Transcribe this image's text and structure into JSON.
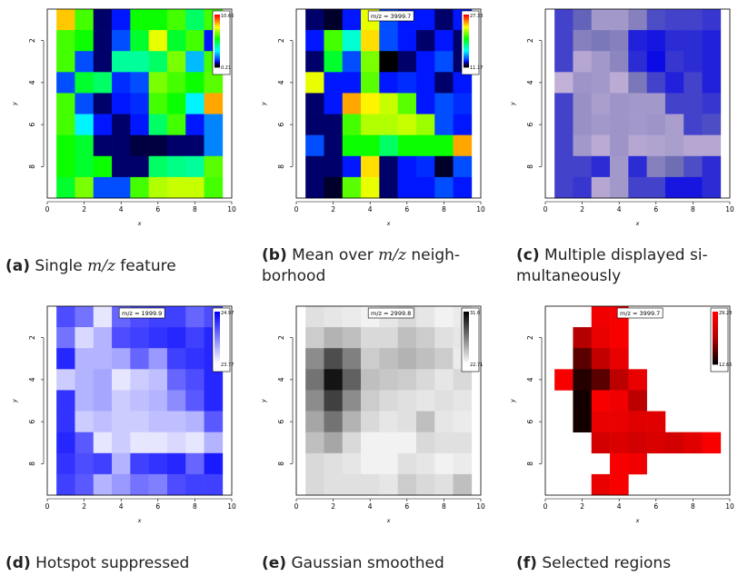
{
  "panels": [
    {
      "caption_label": "(a)",
      "caption_parts": [
        {
          "t": "Single ",
          "math": false
        },
        {
          "t": "m/z",
          "math": true
        },
        {
          "t": " feature",
          "math": false
        }
      ]
    },
    {
      "caption_label": "(b)",
      "caption_parts": [
        {
          "t": "Mean over ",
          "math": false
        },
        {
          "t": "m/z",
          "math": true
        },
        {
          "t": " neigh-\nborhood",
          "math": false
        }
      ]
    },
    {
      "caption_label": "(c)",
      "caption_parts": [
        {
          "t": "Multiple displayed si-\nmultaneously",
          "math": false
        }
      ]
    },
    {
      "caption_label": "(d)",
      "caption_parts": [
        {
          "t": "Hotspot suppressed",
          "math": false
        }
      ]
    },
    {
      "caption_label": "(e)",
      "caption_parts": [
        {
          "t": "Gaussian smoothed",
          "math": false
        }
      ]
    },
    {
      "caption_label": "(f)",
      "caption_parts": [
        {
          "t": "Selected regions",
          "math": false
        }
      ]
    }
  ],
  "chart_data": [
    {
      "type": "heatmap",
      "xlabel": "x",
      "ylabel": "y",
      "xlim": [
        0,
        10
      ],
      "ylim": [
        0.5,
        9.5
      ],
      "y_reversed": true,
      "xticks": [
        0,
        2,
        4,
        6,
        8,
        10
      ],
      "yticks": [
        2,
        4,
        6,
        8
      ],
      "mz_label": "",
      "colormap": "rainbow",
      "colorbar": {
        "max": "10.66",
        "min": "0.21"
      },
      "x": [
        1,
        2,
        3,
        4,
        5,
        6,
        7,
        8,
        9
      ],
      "y": [
        1,
        2,
        3,
        4,
        5,
        6,
        7,
        8,
        9
      ],
      "values": [
        [
          0.82,
          0.6,
          0.05,
          0.1,
          0.55,
          0.55,
          0.6,
          0.45,
          0.6
        ],
        [
          0.6,
          0.55,
          0.05,
          0.15,
          0.5,
          0.75,
          0.5,
          0.6,
          0.1
        ],
        [
          0.6,
          0.15,
          0.05,
          0.4,
          0.4,
          0.45,
          0.65,
          0.25,
          0.6
        ],
        [
          0.15,
          0.5,
          0.45,
          0.12,
          0.15,
          0.65,
          0.6,
          0.55,
          0.62
        ],
        [
          0.6,
          0.15,
          0.05,
          0.1,
          0.12,
          0.6,
          0.55,
          0.3,
          0.85
        ],
        [
          0.6,
          0.3,
          0.1,
          0.05,
          0.1,
          0.45,
          0.6,
          0.1,
          0.2
        ],
        [
          0.55,
          0.5,
          0.05,
          0.05,
          0.03,
          0.03,
          0.05,
          0.05,
          0.2
        ],
        [
          0.55,
          0.5,
          0.55,
          0.05,
          0.05,
          0.45,
          0.42,
          0.4,
          0.62
        ],
        [
          0.5,
          0.65,
          0.15,
          0.15,
          0.6,
          0.7,
          0.72,
          0.72,
          0.6
        ]
      ]
    },
    {
      "type": "heatmap",
      "xlabel": "x",
      "ylabel": "y",
      "xlim": [
        0,
        10
      ],
      "ylim": [
        0.5,
        9.5
      ],
      "y_reversed": true,
      "xticks": [
        0,
        2,
        4,
        6,
        8,
        10
      ],
      "yticks": [
        2,
        4,
        6,
        8
      ],
      "mz_label": "m/z = 3999.7",
      "colormap": "rainbow",
      "colorbar": {
        "max": "27.33",
        "min": "11.17"
      },
      "x": [
        1,
        2,
        3,
        4,
        5,
        6,
        7,
        8,
        9
      ],
      "y": [
        1,
        2,
        3,
        4,
        5,
        6,
        7,
        8,
        9
      ],
      "values": [
        [
          0.05,
          0.02,
          0.1,
          0.75,
          0.15,
          0.1,
          0.1,
          0.05,
          0.1
        ],
        [
          0.1,
          0.6,
          0.35,
          0.8,
          0.15,
          0.1,
          0.05,
          0.1,
          0.05
        ],
        [
          0.05,
          0.5,
          0.15,
          0.65,
          0.0,
          0.05,
          0.1,
          0.15,
          0.05
        ],
        [
          0.75,
          0.1,
          0.1,
          0.62,
          0.1,
          0.12,
          0.1,
          0.05,
          0.1
        ],
        [
          0.05,
          0.1,
          0.85,
          0.78,
          0.72,
          0.62,
          0.1,
          0.15,
          0.12
        ],
        [
          0.05,
          0.05,
          0.6,
          0.7,
          0.7,
          0.72,
          0.68,
          0.15,
          0.1
        ],
        [
          0.15,
          0.05,
          0.55,
          0.55,
          0.45,
          0.55,
          0.55,
          0.55,
          0.85
        ],
        [
          0.05,
          0.05,
          0.1,
          0.8,
          0.05,
          0.1,
          0.12,
          0.02,
          0.15
        ],
        [
          0.05,
          0.02,
          0.62,
          0.75,
          0.05,
          0.1,
          0.1,
          0.15,
          0.1
        ]
      ]
    },
    {
      "type": "heatmap",
      "xlabel": "x",
      "ylabel": "y",
      "xlim": [
        0,
        10
      ],
      "ylim": [
        0.5,
        9.5
      ],
      "y_reversed": true,
      "xticks": [
        0,
        2,
        4,
        6,
        8,
        10
      ],
      "yticks": [
        2,
        4,
        6,
        8
      ],
      "mz_label": "",
      "colormap": "blend",
      "colorbar": null,
      "x": [
        1,
        2,
        3,
        4,
        5,
        6,
        7,
        8,
        9
      ],
      "y": [
        1,
        2,
        3,
        4,
        5,
        6,
        7,
        8,
        9
      ],
      "values": [
        [
          0.3,
          0.45,
          0.72,
          0.72,
          0.6,
          0.35,
          0.3,
          0.3,
          0.25
        ],
        [
          0.3,
          0.6,
          0.55,
          0.6,
          0.15,
          0.1,
          0.2,
          0.2,
          0.15
        ],
        [
          0.3,
          0.8,
          0.72,
          0.62,
          0.2,
          0.05,
          0.25,
          0.2,
          0.15
        ],
        [
          0.85,
          0.7,
          0.72,
          0.82,
          0.55,
          0.3,
          0.15,
          0.3,
          0.15
        ],
        [
          0.3,
          0.68,
          0.75,
          0.7,
          0.72,
          0.72,
          0.3,
          0.3,
          0.25
        ],
        [
          0.3,
          0.68,
          0.72,
          0.7,
          0.72,
          0.7,
          0.75,
          0.3,
          0.35
        ],
        [
          0.3,
          0.72,
          0.82,
          0.7,
          0.8,
          0.78,
          0.75,
          0.8,
          0.8
        ],
        [
          0.3,
          0.3,
          0.2,
          0.72,
          0.2,
          0.6,
          0.5,
          0.35,
          0.2
        ],
        [
          0.3,
          0.25,
          0.8,
          0.72,
          0.3,
          0.3,
          0.1,
          0.1,
          0.2
        ]
      ]
    },
    {
      "type": "heatmap",
      "xlabel": "x",
      "ylabel": "y",
      "xlim": [
        0,
        10
      ],
      "ylim": [
        0.5,
        9.5
      ],
      "y_reversed": true,
      "xticks": [
        0,
        2,
        4,
        6,
        8,
        10
      ],
      "yticks": [
        2,
        4,
        6,
        8
      ],
      "mz_label": "m/z = 1999.9",
      "colormap": "blue",
      "colorbar": {
        "max": "24.97",
        "min": "23.77"
      },
      "x": [
        1,
        2,
        3,
        4,
        5,
        6,
        7,
        8,
        9
      ],
      "y": [
        1,
        2,
        3,
        4,
        5,
        6,
        7,
        8,
        9
      ],
      "values": [
        [
          0.7,
          0.55,
          0.1,
          0.6,
          0.7,
          0.75,
          0.75,
          0.6,
          0.7
        ],
        [
          0.55,
          0.15,
          0.3,
          0.7,
          0.75,
          0.8,
          0.85,
          0.75,
          0.85
        ],
        [
          0.85,
          0.3,
          0.3,
          0.35,
          0.6,
          0.4,
          0.75,
          0.8,
          0.85
        ],
        [
          0.2,
          0.3,
          0.35,
          0.1,
          0.2,
          0.25,
          0.6,
          0.7,
          0.85
        ],
        [
          0.8,
          0.3,
          0.35,
          0.2,
          0.25,
          0.3,
          0.45,
          0.65,
          0.85
        ],
        [
          0.8,
          0.2,
          0.25,
          0.2,
          0.2,
          0.25,
          0.25,
          0.3,
          0.65
        ],
        [
          0.85,
          0.65,
          0.1,
          0.2,
          0.1,
          0.1,
          0.15,
          0.1,
          0.3
        ],
        [
          0.8,
          0.7,
          0.75,
          0.3,
          0.75,
          0.8,
          0.85,
          0.6,
          0.9
        ],
        [
          0.75,
          0.65,
          0.3,
          0.4,
          0.55,
          0.5,
          0.7,
          0.75,
          0.75
        ]
      ]
    },
    {
      "type": "heatmap",
      "xlabel": "x",
      "ylabel": "y",
      "xlim": [
        0,
        10
      ],
      "ylim": [
        0.5,
        9.5
      ],
      "y_reversed": true,
      "xticks": [
        0,
        2,
        4,
        6,
        8,
        10
      ],
      "yticks": [
        2,
        4,
        6,
        8
      ],
      "mz_label": "m/z = 2999.8",
      "colormap": "gray",
      "colorbar": {
        "max": "31.0",
        "min": "22.71"
      },
      "x": [
        1,
        2,
        3,
        4,
        5,
        6,
        7,
        8,
        9
      ],
      "y": [
        1,
        2,
        3,
        4,
        5,
        6,
        7,
        8,
        9
      ],
      "values": [
        [
          0.12,
          0.1,
          0.08,
          0.05,
          0.1,
          0.15,
          0.1,
          0.05,
          0.08
        ],
        [
          0.2,
          0.3,
          0.25,
          0.15,
          0.15,
          0.25,
          0.2,
          0.12,
          0.1
        ],
        [
          0.45,
          0.7,
          0.5,
          0.2,
          0.25,
          0.3,
          0.25,
          0.2,
          0.08
        ],
        [
          0.55,
          0.92,
          0.62,
          0.25,
          0.22,
          0.2,
          0.15,
          0.1,
          0.15
        ],
        [
          0.45,
          0.75,
          0.45,
          0.2,
          0.15,
          0.12,
          0.1,
          0.12,
          0.1
        ],
        [
          0.35,
          0.55,
          0.3,
          0.15,
          0.1,
          0.12,
          0.25,
          0.1,
          0.08
        ],
        [
          0.25,
          0.35,
          0.15,
          0.05,
          0.05,
          0.05,
          0.15,
          0.12,
          0.12
        ],
        [
          0.15,
          0.12,
          0.1,
          0.05,
          0.05,
          0.12,
          0.1,
          0.05,
          0.08
        ],
        [
          0.15,
          0.12,
          0.12,
          0.12,
          0.1,
          0.2,
          0.15,
          0.12,
          0.25
        ]
      ]
    },
    {
      "type": "heatmap",
      "xlabel": "x",
      "ylabel": "y",
      "xlim": [
        0,
        10
      ],
      "ylim": [
        0.5,
        9.5
      ],
      "y_reversed": true,
      "xticks": [
        0,
        2,
        4,
        6,
        8,
        10
      ],
      "yticks": [
        2,
        4,
        6,
        8
      ],
      "mz_label": "m/z = 3999.7",
      "colormap": "red",
      "colorbar": {
        "max": "29.28",
        "min": "12.66"
      },
      "x": [
        1,
        2,
        3,
        4,
        5,
        6,
        7,
        8,
        9
      ],
      "y": [
        1,
        2,
        3,
        4,
        5,
        6,
        7,
        8,
        9
      ],
      "values": [
        [
          null,
          null,
          0.9,
          0.95,
          null,
          null,
          null,
          null,
          null
        ],
        [
          null,
          0.5,
          0.85,
          0.95,
          null,
          null,
          null,
          null,
          null
        ],
        [
          null,
          0.25,
          0.6,
          0.85,
          null,
          null,
          null,
          null,
          null
        ],
        [
          0.95,
          0.1,
          0.25,
          0.55,
          0.85,
          null,
          null,
          null,
          null
        ],
        [
          null,
          0.05,
          0.95,
          0.9,
          0.55,
          null,
          null,
          null,
          null
        ],
        [
          null,
          0.05,
          0.85,
          0.85,
          0.8,
          0.8,
          null,
          null,
          null
        ],
        [
          null,
          null,
          0.7,
          0.75,
          0.7,
          0.75,
          0.7,
          0.8,
          0.95
        ],
        [
          null,
          null,
          null,
          0.95,
          0.9,
          null,
          null,
          null,
          null
        ],
        [
          null,
          null,
          0.85,
          0.95,
          null,
          null,
          null,
          null,
          null
        ]
      ]
    }
  ]
}
